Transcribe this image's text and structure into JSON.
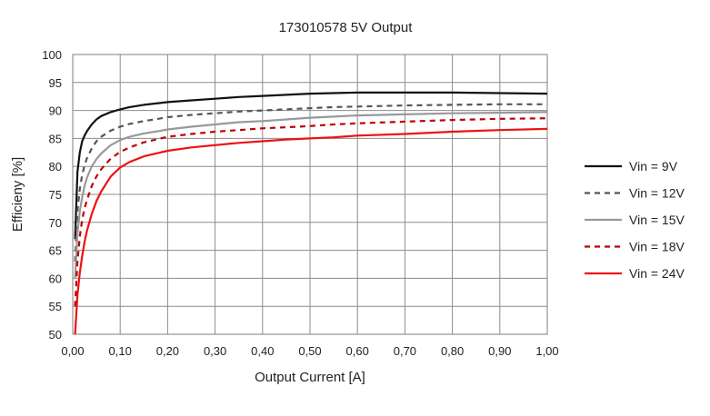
{
  "chart_data": {
    "type": "line",
    "title": "173010578  5V Output",
    "xlabel": "Output Current [A]",
    "ylabel": "Efficieny [%]",
    "xlim": [
      0,
      1
    ],
    "ylim": [
      50,
      100
    ],
    "x_ticks": [
      "0,00",
      "0,10",
      "0,20",
      "0,30",
      "0,40",
      "0,50",
      "0,60",
      "0,70",
      "0,80",
      "0,90",
      "1,00"
    ],
    "y_ticks": [
      "50",
      "55",
      "60",
      "65",
      "70",
      "75",
      "80",
      "85",
      "90",
      "95",
      "100"
    ],
    "grid": true,
    "legend_position": "right",
    "series": [
      {
        "name": "Vin = 9V",
        "color": "#111111",
        "dash": "solid",
        "x": [
          0.005,
          0.01,
          0.015,
          0.02,
          0.025,
          0.03,
          0.04,
          0.05,
          0.06,
          0.08,
          0.1,
          0.12,
          0.15,
          0.18,
          0.2,
          0.25,
          0.3,
          0.35,
          0.4,
          0.45,
          0.5,
          0.55,
          0.6,
          0.7,
          0.8,
          0.9,
          1.0
        ],
        "y": [
          67,
          79,
          82.5,
          84.5,
          85.5,
          86.3,
          87.5,
          88.4,
          89.0,
          89.7,
          90.2,
          90.6,
          91.0,
          91.3,
          91.5,
          91.8,
          92.1,
          92.4,
          92.6,
          92.8,
          93.0,
          93.1,
          93.2,
          93.2,
          93.2,
          93.1,
          93.0
        ]
      },
      {
        "name": "Vin = 12V",
        "color": "#555555",
        "dash": "dashed",
        "x": [
          0.005,
          0.01,
          0.015,
          0.02,
          0.025,
          0.03,
          0.04,
          0.05,
          0.06,
          0.08,
          0.1,
          0.12,
          0.15,
          0.18,
          0.2,
          0.25,
          0.3,
          0.35,
          0.4,
          0.45,
          0.5,
          0.55,
          0.6,
          0.7,
          0.8,
          0.9,
          1.0
        ],
        "y": [
          63,
          72,
          76,
          78.5,
          80.2,
          81.5,
          83.2,
          84.5,
          85.3,
          86.4,
          87.1,
          87.6,
          88.1,
          88.5,
          88.8,
          89.2,
          89.5,
          89.8,
          90.0,
          90.2,
          90.4,
          90.6,
          90.7,
          90.9,
          91.0,
          91.1,
          91.1
        ]
      },
      {
        "name": "Vin = 15V",
        "color": "#999999",
        "dash": "solid",
        "x": [
          0.005,
          0.01,
          0.015,
          0.02,
          0.025,
          0.03,
          0.04,
          0.05,
          0.06,
          0.08,
          0.1,
          0.12,
          0.15,
          0.18,
          0.2,
          0.25,
          0.3,
          0.35,
          0.4,
          0.45,
          0.5,
          0.55,
          0.6,
          0.7,
          0.8,
          0.9,
          1.0
        ],
        "y": [
          60,
          68,
          72,
          74.5,
          76.5,
          78,
          80,
          81.3,
          82.3,
          83.8,
          84.7,
          85.3,
          85.9,
          86.3,
          86.6,
          87.1,
          87.5,
          87.9,
          88.1,
          88.4,
          88.7,
          88.9,
          89.1,
          89.3,
          89.5,
          89.6,
          89.7
        ]
      },
      {
        "name": "Vin = 18V",
        "color": "#c00000",
        "dash": "dashed",
        "x": [
          0.005,
          0.01,
          0.015,
          0.02,
          0.025,
          0.03,
          0.04,
          0.05,
          0.06,
          0.08,
          0.1,
          0.12,
          0.15,
          0.18,
          0.2,
          0.25,
          0.3,
          0.35,
          0.4,
          0.45,
          0.5,
          0.55,
          0.6,
          0.7,
          0.8,
          0.9,
          1.0
        ],
        "y": [
          55,
          63,
          67.5,
          70.5,
          72.5,
          74,
          76.5,
          78.2,
          79.5,
          81.4,
          82.6,
          83.4,
          84.3,
          84.9,
          85.3,
          85.8,
          86.2,
          86.5,
          86.8,
          87.0,
          87.2,
          87.5,
          87.7,
          88.0,
          88.3,
          88.5,
          88.6
        ]
      },
      {
        "name": "Vin = 24V",
        "color": "#ee1111",
        "dash": "solid",
        "x": [
          0.005,
          0.01,
          0.015,
          0.02,
          0.025,
          0.03,
          0.04,
          0.05,
          0.06,
          0.08,
          0.1,
          0.12,
          0.15,
          0.18,
          0.2,
          0.25,
          0.3,
          0.35,
          0.4,
          0.45,
          0.5,
          0.55,
          0.6,
          0.7,
          0.8,
          0.9,
          1.0
        ],
        "y": [
          50,
          57,
          61,
          64,
          66.5,
          68.5,
          71.5,
          73.8,
          75.5,
          78.2,
          79.8,
          80.8,
          81.8,
          82.4,
          82.8,
          83.4,
          83.8,
          84.2,
          84.5,
          84.8,
          85.0,
          85.2,
          85.5,
          85.8,
          86.2,
          86.5,
          86.7
        ]
      }
    ]
  }
}
